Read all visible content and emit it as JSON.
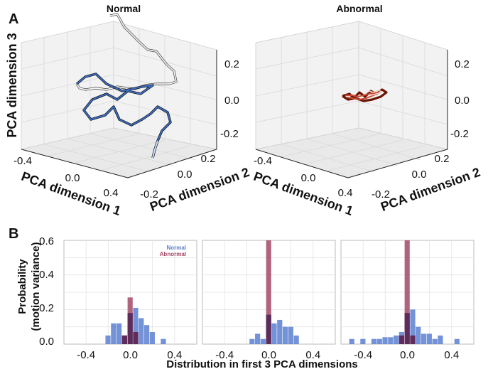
{
  "panel_labels": {
    "a": "A",
    "b": "B"
  },
  "panel_a": {
    "titles": [
      "Normal",
      "Abnormal"
    ],
    "xlabel": "PCA dimension 1",
    "ylabel": "PCA dimension 2",
    "zlabel": "PCA dimension 3",
    "x_ticks": [
      "-0.4",
      "0.0",
      "0.4"
    ],
    "y_ticks": [
      "-0.2",
      "0.0",
      "0.2"
    ],
    "z_ticks": [
      "0.2",
      "0.0",
      "-0.2"
    ]
  },
  "panel_b": {
    "ylabel_line1": "Probability",
    "ylabel_line2": "(motion variance)",
    "xlabel": "Distribution in first 3 PCA dimensions",
    "y_ticks": [
      "0.6",
      "0.4",
      "0.2",
      "0.0"
    ],
    "x_ticks": [
      "-0.4",
      "0.0",
      "0.4"
    ],
    "legend": [
      "Normal",
      "Abnormal"
    ]
  },
  "colors": {
    "normal": "#5b7fd0",
    "abnormal": "#a24a67",
    "overlap": "#5a2a58",
    "traj_dark": "#1f3d7a",
    "traj_light": "#dfe9f5",
    "traj_red": "#8b1e0e"
  },
  "chart_data": [
    {
      "type": "line",
      "title": "Normal",
      "xlabel": "PCA dimension 1",
      "ylabel": "PCA dimension 2",
      "zlabel": "PCA dimension 3",
      "xlim": [
        -0.5,
        0.5
      ],
      "ylim": [
        -0.3,
        0.3
      ],
      "zlim": [
        -0.3,
        0.3
      ]
    },
    {
      "type": "line",
      "title": "Abnormal",
      "xlabel": "PCA dimension 1",
      "ylabel": "PCA dimension 2",
      "zlabel": "PCA dimension 3",
      "xlim": [
        -0.5,
        0.5
      ],
      "ylim": [
        -0.3,
        0.3
      ],
      "zlim": [
        -0.3,
        0.3
      ]
    },
    {
      "type": "bar",
      "xlim": [
        -0.6,
        0.6
      ],
      "ylim": [
        0,
        0.6
      ],
      "bin_width": 0.05,
      "bin_centers": [
        -0.2,
        -0.15,
        -0.1,
        -0.05,
        0.0,
        0.05,
        0.1,
        0.15,
        0.2,
        0.3
      ],
      "series": [
        {
          "name": "Normal",
          "values": [
            0.05,
            0.12,
            0.12,
            0.05,
            0.18,
            0.21,
            0.15,
            0.11,
            0.07,
            0.03
          ]
        },
        {
          "name": "Abnormal",
          "values": [
            0.0,
            0.0,
            0.0,
            0.05,
            0.27,
            0.07,
            0.0,
            0.0,
            0.0,
            0.0
          ]
        }
      ]
    },
    {
      "type": "bar",
      "xlim": [
        -0.6,
        0.6
      ],
      "ylim": [
        0,
        0.6
      ],
      "bin_width": 0.05,
      "bin_centers": [
        -0.15,
        -0.1,
        -0.05,
        0.0,
        0.05,
        0.1,
        0.15,
        0.2,
        0.25
      ],
      "series": [
        {
          "name": "Normal",
          "values": [
            0.03,
            0.06,
            0.03,
            0.17,
            0.12,
            0.14,
            0.1,
            0.1,
            0.05
          ]
        },
        {
          "name": "Abnormal",
          "values": [
            0.0,
            0.0,
            0.0,
            0.6,
            0.0,
            0.0,
            0.0,
            0.0,
            0.0
          ]
        }
      ]
    },
    {
      "type": "bar",
      "xlim": [
        -0.6,
        0.6
      ],
      "ylim": [
        0,
        0.6
      ],
      "bin_width": 0.05,
      "bin_centers": [
        -0.5,
        -0.4,
        -0.3,
        -0.25,
        -0.2,
        -0.15,
        -0.1,
        -0.05,
        0.0,
        0.05,
        0.1,
        0.15,
        0.2,
        0.25,
        0.3,
        0.45
      ],
      "series": [
        {
          "name": "Normal",
          "values": [
            0.03,
            0.03,
            0.03,
            0.03,
            0.04,
            0.04,
            0.05,
            0.07,
            0.18,
            0.2,
            0.1,
            0.06,
            0.06,
            0.03,
            0.05,
            0.03
          ]
        },
        {
          "name": "Abnormal",
          "values": [
            0,
            0,
            0,
            0,
            0,
            0,
            0,
            0.05,
            0.6,
            0.05,
            0,
            0,
            0,
            0,
            0,
            0
          ]
        }
      ]
    }
  ]
}
